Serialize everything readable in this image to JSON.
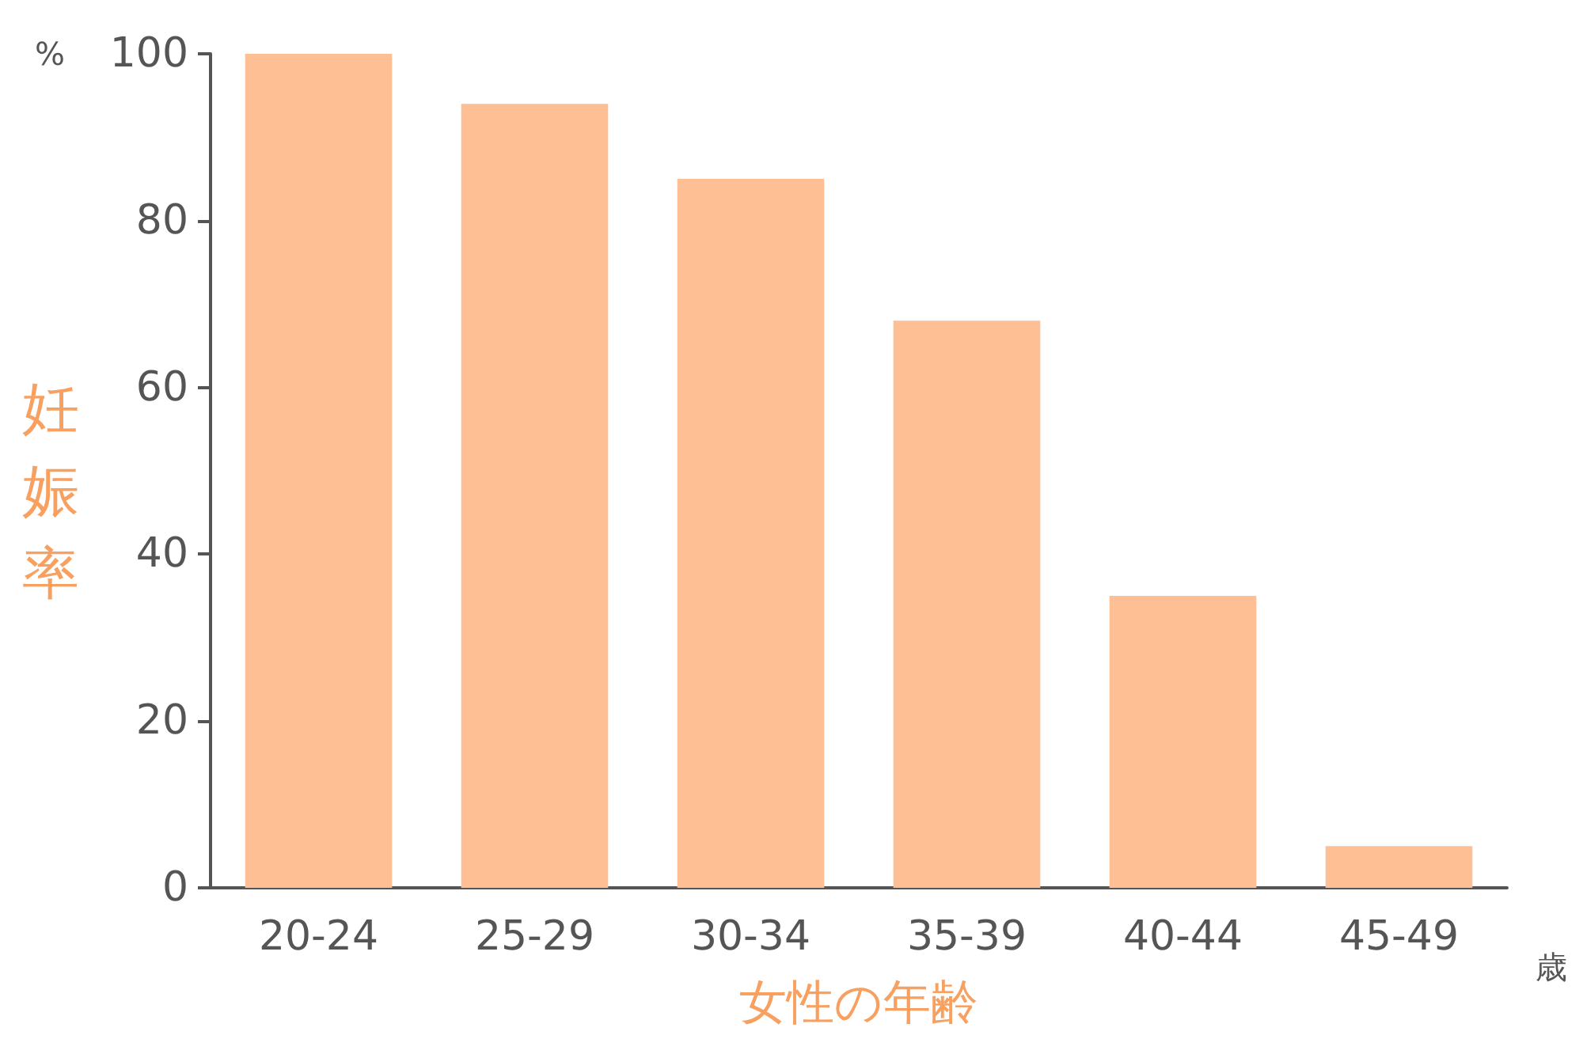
{
  "chart_data": {
    "type": "bar",
    "xlabel": "女性の年齢",
    "ylabel": "妊娠率",
    "categories": [
      "20-24",
      "25-29",
      "30-34",
      "35-39",
      "40-44",
      "45-49"
    ],
    "values": [
      100,
      94,
      85,
      68,
      35,
      5
    ],
    "color": "#ffbf94",
    "ylim": [
      0,
      100
    ],
    "yticks": [
      0,
      20,
      40,
      60,
      80,
      100
    ],
    "grid": false,
    "annotations": [
      "%",
      "歳"
    ]
  }
}
